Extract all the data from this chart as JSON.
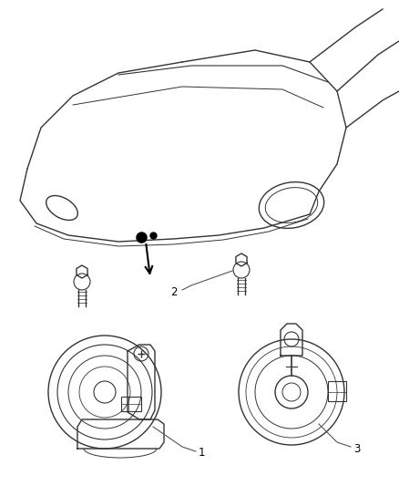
{
  "background_color": "#ffffff",
  "line_color": "#333333",
  "fig_width": 4.38,
  "fig_height": 5.33,
  "dpi": 100,
  "label_fontsize": 8.5,
  "label_color": "#555555"
}
